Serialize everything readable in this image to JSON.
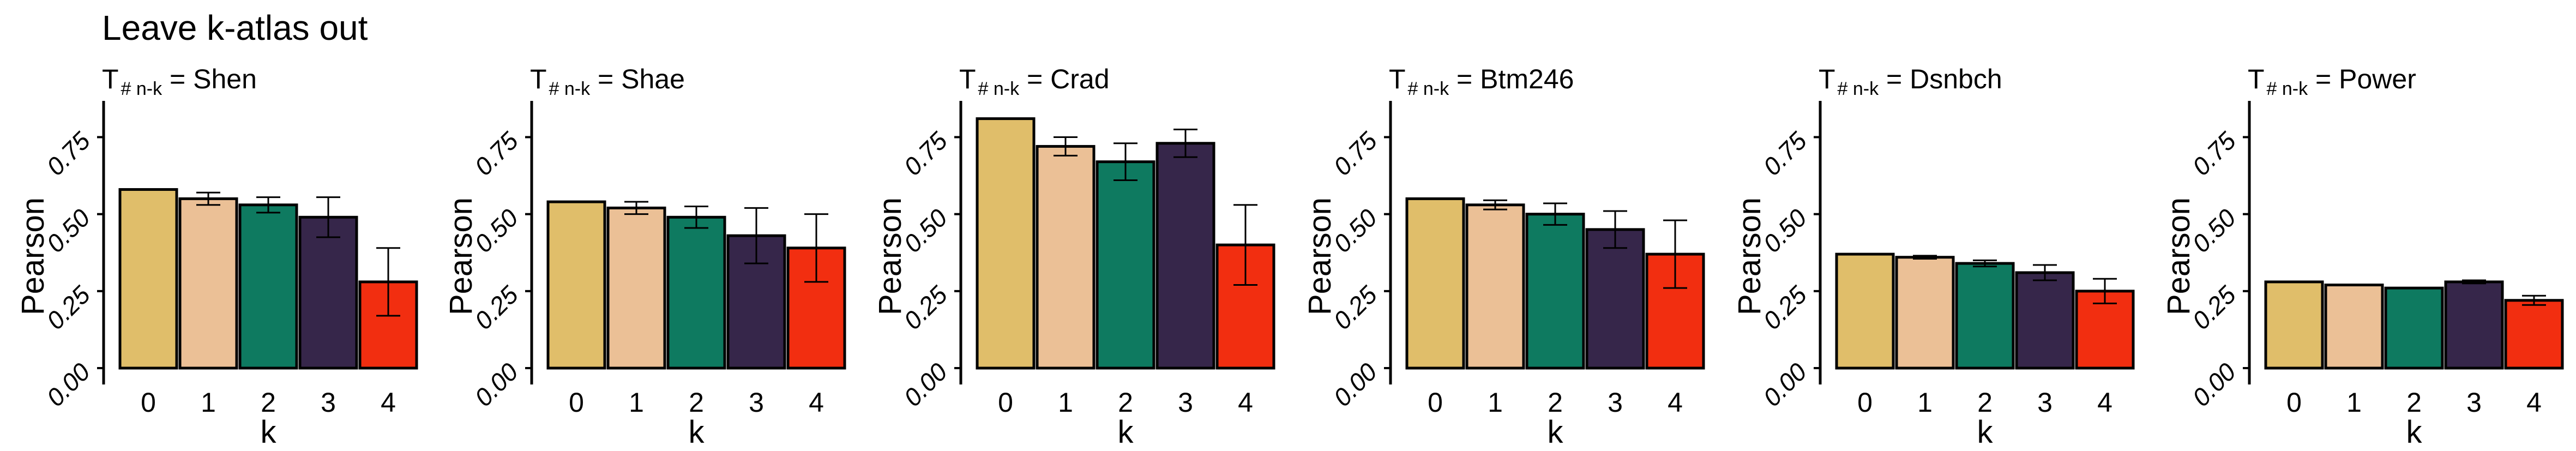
{
  "title": "Leave k-atlas out",
  "colors": [
    "#E0BE6A",
    "#EBC096",
    "#0E7A60",
    "#36264A",
    "#F22E10"
  ],
  "chart_data": [
    {
      "type": "bar",
      "panel_title": {
        "base": "T",
        "subscript": "# n-k",
        "suffix": " = Shen"
      },
      "categories": [
        "0",
        "1",
        "2",
        "3",
        "4"
      ],
      "values": [
        0.58,
        0.55,
        0.53,
        0.49,
        0.28
      ],
      "errors": [
        0.0,
        0.02,
        0.025,
        0.065,
        0.11
      ],
      "xlabel": "k",
      "ylabel": "Pearson",
      "ylim": [
        0,
        0.85
      ],
      "yticks": [
        "0.00",
        "0.25",
        "0.50",
        "0.75"
      ],
      "grid": false
    },
    {
      "type": "bar",
      "panel_title": {
        "base": "T",
        "subscript": "# n-k",
        "suffix": " = Shae"
      },
      "categories": [
        "0",
        "1",
        "2",
        "3",
        "4"
      ],
      "values": [
        0.54,
        0.52,
        0.49,
        0.43,
        0.39
      ],
      "errors": [
        0.0,
        0.02,
        0.035,
        0.09,
        0.11
      ],
      "xlabel": "k",
      "ylabel": "Pearson",
      "ylim": [
        0,
        0.85
      ],
      "yticks": [
        "0.00",
        "0.25",
        "0.50",
        "0.75"
      ],
      "grid": false
    },
    {
      "type": "bar",
      "panel_title": {
        "base": "T",
        "subscript": "# n-k",
        "suffix": " = Crad"
      },
      "categories": [
        "0",
        "1",
        "2",
        "3",
        "4"
      ],
      "values": [
        0.81,
        0.72,
        0.67,
        0.73,
        0.4
      ],
      "errors": [
        0.0,
        0.03,
        0.06,
        0.045,
        0.13
      ],
      "xlabel": "k",
      "ylabel": "Pearson",
      "ylim": [
        0,
        0.85
      ],
      "yticks": [
        "0.00",
        "0.25",
        "0.50",
        "0.75"
      ],
      "grid": false
    },
    {
      "type": "bar",
      "panel_title": {
        "base": "T",
        "subscript": "# n-k",
        "suffix": " = Btm246"
      },
      "categories": [
        "0",
        "1",
        "2",
        "3",
        "4"
      ],
      "values": [
        0.55,
        0.53,
        0.5,
        0.45,
        0.37
      ],
      "errors": [
        0.0,
        0.015,
        0.035,
        0.06,
        0.11
      ],
      "xlabel": "k",
      "ylabel": "Pearson",
      "ylim": [
        0,
        0.85
      ],
      "yticks": [
        "0.00",
        "0.25",
        "0.50",
        "0.75"
      ],
      "grid": false
    },
    {
      "type": "bar",
      "panel_title": {
        "base": "T",
        "subscript": "# n-k",
        "suffix": " = Dsnbch"
      },
      "categories": [
        "0",
        "1",
        "2",
        "3",
        "4"
      ],
      "values": [
        0.37,
        0.36,
        0.34,
        0.31,
        0.25
      ],
      "errors": [
        0.0,
        0.005,
        0.01,
        0.025,
        0.04
      ],
      "xlabel": "k",
      "ylabel": "Pearson",
      "ylim": [
        0,
        0.85
      ],
      "yticks": [
        "0.00",
        "0.25",
        "0.50",
        "0.75"
      ],
      "grid": false
    },
    {
      "type": "bar",
      "panel_title": {
        "base": "T",
        "subscript": "# n-k",
        "suffix": " = Power"
      },
      "categories": [
        "0",
        "1",
        "2",
        "3",
        "4"
      ],
      "values": [
        0.28,
        0.27,
        0.26,
        0.28,
        0.22
      ],
      "errors": [
        0.0,
        0.0,
        0.0,
        0.005,
        0.015
      ],
      "xlabel": "k",
      "ylabel": "Pearson",
      "ylim": [
        0,
        0.85
      ],
      "yticks": [
        "0.00",
        "0.25",
        "0.50",
        "0.75"
      ],
      "grid": false
    }
  ]
}
